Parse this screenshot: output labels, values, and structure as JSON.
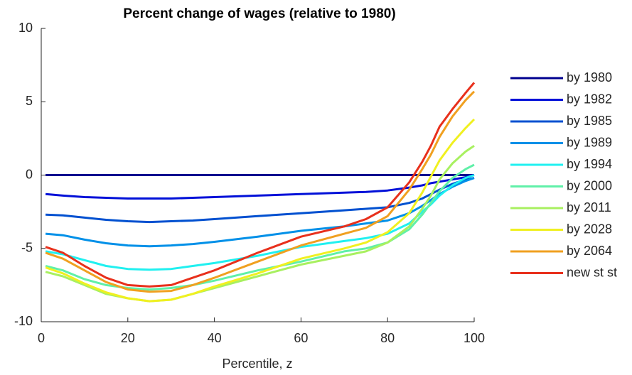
{
  "chart_data": {
    "type": "line",
    "title": "Percent change of wages (relative to 1980)",
    "xlabel": "Percentile, z",
    "x": [
      1,
      5,
      10,
      15,
      20,
      25,
      30,
      35,
      40,
      50,
      60,
      70,
      75,
      80,
      85,
      88,
      90,
      92,
      95,
      98,
      100
    ],
    "xlim": [
      0,
      100
    ],
    "xticks": [
      0,
      20,
      40,
      60,
      80,
      100
    ],
    "ylim": [
      -10,
      10
    ],
    "yticks": [
      -10,
      -5,
      0,
      5,
      10
    ],
    "grid": false,
    "legend": "outside-right",
    "series": [
      {
        "name": "by 1980",
        "color": "#00008f",
        "values": [
          0,
          0,
          0,
          0,
          0,
          0,
          0,
          0,
          0,
          0,
          0,
          0,
          0,
          0,
          0,
          0,
          0,
          0,
          0,
          0,
          0
        ]
      },
      {
        "name": "by 1982",
        "color": "#0010d8",
        "values": [
          -1.3,
          -1.4,
          -1.5,
          -1.55,
          -1.6,
          -1.6,
          -1.6,
          -1.55,
          -1.5,
          -1.4,
          -1.3,
          -1.2,
          -1.15,
          -1.05,
          -0.85,
          -0.7,
          -0.55,
          -0.45,
          -0.3,
          -0.15,
          0
        ]
      },
      {
        "name": "by 1985",
        "color": "#0050d0",
        "values": [
          -2.7,
          -2.75,
          -2.9,
          -3.05,
          -3.15,
          -3.2,
          -3.15,
          -3.1,
          -3.0,
          -2.8,
          -2.6,
          -2.4,
          -2.3,
          -2.2,
          -1.9,
          -1.6,
          -1.3,
          -1.0,
          -0.6,
          -0.3,
          -0.2
        ]
      },
      {
        "name": "by 1989",
        "color": "#0090e8",
        "values": [
          -4.0,
          -4.1,
          -4.4,
          -4.65,
          -4.8,
          -4.85,
          -4.8,
          -4.7,
          -4.55,
          -4.2,
          -3.8,
          -3.5,
          -3.3,
          -3.1,
          -2.6,
          -2.1,
          -1.7,
          -1.3,
          -0.8,
          -0.4,
          -0.2
        ]
      },
      {
        "name": "by 1994",
        "color": "#20f0f0",
        "values": [
          -5.2,
          -5.4,
          -5.8,
          -6.2,
          -6.4,
          -6.45,
          -6.4,
          -6.2,
          -6.0,
          -5.5,
          -4.9,
          -4.5,
          -4.3,
          -4.0,
          -3.3,
          -2.5,
          -2.0,
          -1.4,
          -0.7,
          -0.2,
          0
        ]
      },
      {
        "name": "by 2000",
        "color": "#60f0a8",
        "values": [
          -6.2,
          -6.5,
          -7.1,
          -7.5,
          -7.7,
          -7.8,
          -7.7,
          -7.5,
          -7.2,
          -6.5,
          -5.9,
          -5.2,
          -5.0,
          -4.6,
          -3.7,
          -2.7,
          -1.9,
          -1.1,
          -0.2,
          0.4,
          0.7
        ]
      },
      {
        "name": "by 2011",
        "color": "#a8f060",
        "values": [
          -6.6,
          -6.9,
          -7.5,
          -8.1,
          -8.4,
          -8.6,
          -8.5,
          -8.1,
          -7.7,
          -6.9,
          -6.1,
          -5.5,
          -5.2,
          -4.6,
          -3.5,
          -2.3,
          -1.4,
          -0.3,
          0.8,
          1.6,
          2.0
        ]
      },
      {
        "name": "by 2028",
        "color": "#f0f020",
        "values": [
          -6.3,
          -6.7,
          -7.4,
          -8.0,
          -8.4,
          -8.6,
          -8.5,
          -8.1,
          -7.6,
          -6.7,
          -5.7,
          -5.0,
          -4.6,
          -3.9,
          -2.6,
          -1.2,
          -0.1,
          1.0,
          2.2,
          3.2,
          3.8
        ]
      },
      {
        "name": "by 2064",
        "color": "#f0a020",
        "values": [
          -5.3,
          -5.7,
          -6.5,
          -7.3,
          -7.8,
          -7.95,
          -7.9,
          -7.5,
          -7.0,
          -5.9,
          -4.8,
          -4.0,
          -3.6,
          -2.8,
          -1.0,
          0.4,
          1.4,
          2.6,
          4.0,
          5.1,
          5.7
        ]
      },
      {
        "name": "new st st",
        "color": "#e8301c",
        "values": [
          -4.9,
          -5.3,
          -6.2,
          -7.0,
          -7.5,
          -7.6,
          -7.5,
          -7.0,
          -6.5,
          -5.3,
          -4.2,
          -3.5,
          -3.0,
          -2.2,
          -0.5,
          0.9,
          2.0,
          3.3,
          4.5,
          5.6,
          6.3
        ]
      }
    ]
  }
}
